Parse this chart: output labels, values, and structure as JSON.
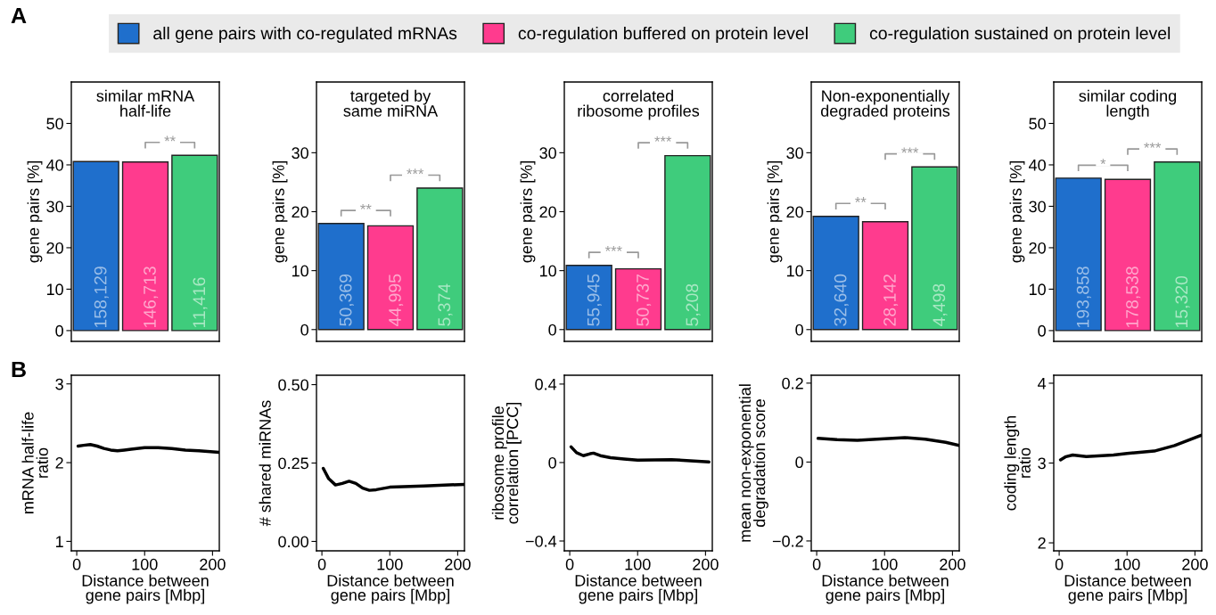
{
  "chart_data": [
    {
      "type": "bar",
      "title": "similar mRNA\nhalf-life",
      "ylabel": "gene pairs [%]",
      "categories": [
        "158,129",
        "146,713",
        "11,416"
      ],
      "legend": "top",
      "ylim": [
        -2.6,
        60
      ],
      "yticks": [
        0,
        10,
        20,
        30,
        40,
        50
      ],
      "series": [
        {
          "name": "all gene pairs with co-regulated mRNAs",
          "color": "#1f6fcc",
          "values": [
            40.8,
            null,
            null
          ]
        },
        {
          "name": "co-regulation buffered on protein level",
          "color": "#ff3b8e",
          "values": [
            null,
            40.7,
            null
          ]
        },
        {
          "name": "co-regulation sustained on protein level",
          "color": "#3fcc7c",
          "values": [
            null,
            null,
            42.3
          ]
        }
      ],
      "annotations": [
        "A",
        "**"
      ]
    },
    {
      "type": "bar",
      "title": "targeted by\nsame miRNA",
      "ylabel": "gene pairs [%]",
      "categories": [
        "50,369",
        "44,995",
        "5,374"
      ],
      "ylim": [
        -2,
        42
      ],
      "yticks": [
        0,
        10,
        20,
        30
      ],
      "series": [
        {
          "color": "#1f6fcc",
          "values": [
            18.0,
            null,
            null
          ]
        },
        {
          "color": "#ff3b8e",
          "values": [
            null,
            17.6,
            null
          ]
        },
        {
          "color": "#3fcc7c",
          "values": [
            null,
            null,
            24.0
          ]
        }
      ],
      "annotations": [
        "**",
        "***"
      ]
    },
    {
      "type": "bar",
      "title": "correlated\nribosome profiles",
      "ylabel": "gene pairs [%]",
      "categories": [
        "55,945",
        "50,737",
        "5,208"
      ],
      "ylim": [
        -2,
        42
      ],
      "yticks": [
        0,
        10,
        20,
        30
      ],
      "series": [
        {
          "color": "#1f6fcc",
          "values": [
            10.9,
            null,
            null
          ]
        },
        {
          "color": "#ff3b8e",
          "values": [
            null,
            10.3,
            null
          ]
        },
        {
          "color": "#3fcc7c",
          "values": [
            null,
            null,
            29.5
          ]
        }
      ],
      "annotations": [
        "***",
        "***"
      ]
    },
    {
      "type": "bar",
      "title": "Non-exponentially\ndegraded proteins",
      "ylabel": "gene pairs [%]",
      "categories": [
        "32,640",
        "28,142",
        "4,498"
      ],
      "ylim": [
        -2,
        42
      ],
      "yticks": [
        0,
        10,
        20,
        30
      ],
      "series": [
        {
          "color": "#1f6fcc",
          "values": [
            19.2,
            null,
            null
          ]
        },
        {
          "color": "#ff3b8e",
          "values": [
            null,
            18.3,
            null
          ]
        },
        {
          "color": "#3fcc7c",
          "values": [
            null,
            null,
            27.6
          ]
        }
      ],
      "annotations": [
        "**",
        "***"
      ]
    },
    {
      "type": "bar",
      "title": "similar coding\nlength",
      "ylabel": "gene pairs [%]",
      "categories": [
        "193,858",
        "178,538",
        "15,320"
      ],
      "ylim": [
        -2.6,
        60
      ],
      "yticks": [
        0,
        10,
        20,
        30,
        40,
        50
      ],
      "series": [
        {
          "color": "#1f6fcc",
          "values": [
            36.8,
            null,
            null
          ]
        },
        {
          "color": "#ff3b8e",
          "values": [
            null,
            36.5,
            null
          ]
        },
        {
          "color": "#3fcc7c",
          "values": [
            null,
            null,
            40.7
          ]
        }
      ],
      "annotations": [
        "*",
        "***"
      ]
    },
    {
      "type": "line",
      "xlabel": "Distance between\ngene pairs [Mbp]",
      "ylabel": "mRNA half-life\nratio",
      "xlim": [
        -8,
        210
      ],
      "xticks": [
        0,
        100,
        200
      ],
      "ylim": [
        0.88,
        3.11
      ],
      "yticks": [
        1,
        2,
        3
      ],
      "series": [
        {
          "color": "#000000",
          "x": [
            2,
            10,
            20,
            30,
            40,
            50,
            60,
            70,
            80,
            100,
            120,
            140,
            160,
            180,
            210
          ],
          "values": [
            2.21,
            2.22,
            2.23,
            2.21,
            2.18,
            2.16,
            2.15,
            2.16,
            2.17,
            2.19,
            2.19,
            2.18,
            2.16,
            2.15,
            2.13
          ]
        }
      ],
      "annotations": [
        "B"
      ]
    },
    {
      "type": "line",
      "xlabel": "Distance between\ngene pairs [Mbp]",
      "ylabel": "# shared miRNAs",
      "xlim": [
        -8,
        210
      ],
      "xticks": [
        0,
        100,
        200
      ],
      "ylim": [
        -0.03,
        0.53
      ],
      "yticks": [
        {
          "value": 0,
          "label": "0.00"
        },
        0.25,
        {
          "value": 0.5,
          "label": "0.50"
        }
      ],
      "series": [
        {
          "color": "#000000",
          "x": [
            2,
            10,
            20,
            30,
            40,
            50,
            60,
            70,
            80,
            100,
            150,
            210
          ],
          "values": [
            0.233,
            0.2,
            0.18,
            0.185,
            0.192,
            0.185,
            0.17,
            0.163,
            0.165,
            0.173,
            0.177,
            0.182
          ]
        }
      ]
    },
    {
      "type": "line",
      "xlabel": "Distance between\ngene pairs [Mbp]",
      "ylabel": "ribosome profile\ncorrelation [PCC]",
      "xlim": [
        -8,
        210
      ],
      "xticks": [
        0,
        100,
        200
      ],
      "ylim": [
        -0.45,
        0.445
      ],
      "yticks": [
        {
          "value": -0.4,
          "label": "−0.4"
        },
        0,
        0.4
      ],
      "series": [
        {
          "color": "#000000",
          "x": [
            2,
            10,
            20,
            30,
            35,
            45,
            60,
            80,
            100,
            150,
            205
          ],
          "values": [
            0.08,
            0.05,
            0.035,
            0.045,
            0.048,
            0.035,
            0.025,
            0.018,
            0.012,
            0.015,
            0.003
          ]
        }
      ]
    },
    {
      "type": "line",
      "xlabel": "Distance between\ngene pairs [Mbp]",
      "ylabel": "mean non-exponential\ndegradation score",
      "xlim": [
        -8,
        210
      ],
      "xticks": [
        0,
        100,
        200
      ],
      "ylim": [
        -0.225,
        0.22
      ],
      "yticks": [
        {
          "value": -0.2,
          "label": "−0.2"
        },
        0,
        0.2
      ],
      "series": [
        {
          "color": "#000000",
          "x": [
            2,
            30,
            60,
            100,
            130,
            160,
            190,
            210
          ],
          "values": [
            0.06,
            0.057,
            0.055,
            0.059,
            0.062,
            0.058,
            0.05,
            0.042
          ]
        }
      ]
    },
    {
      "type": "line",
      "xlabel": "Distance between\ngene pairs [Mbp]",
      "ylabel": "coding length\nratio",
      "xlim": [
        -8,
        210
      ],
      "xticks": [
        0,
        100,
        200
      ],
      "ylim": [
        1.9,
        4.1
      ],
      "yticks": [
        2,
        3,
        4
      ],
      "series": [
        {
          "color": "#000000",
          "x": [
            2,
            10,
            20,
            40,
            80,
            100,
            140,
            170,
            210
          ],
          "values": [
            3.04,
            3.08,
            3.1,
            3.08,
            3.1,
            3.12,
            3.15,
            3.22,
            3.35
          ]
        }
      ]
    }
  ]
}
